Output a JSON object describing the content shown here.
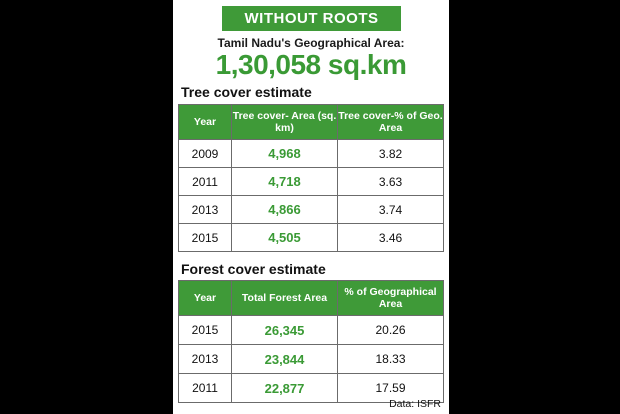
{
  "banner": "WITHOUT ROOTS",
  "geo_label": "Tamil Nadu's Geographical Area:",
  "geo_value": "1,30,058 sq.km",
  "tree": {
    "title": "Tree cover estimate",
    "headers": [
      "Year",
      "Tree cover- Area (sq. km)",
      "Tree cover-% of Geo. Area"
    ],
    "rows": [
      [
        "2009",
        "4,968",
        "3.82"
      ],
      [
        "2011",
        "4,718",
        "3.63"
      ],
      [
        "2013",
        "4,866",
        "3.74"
      ],
      [
        "2015",
        "4,505",
        "3.46"
      ]
    ]
  },
  "forest": {
    "title": "Forest cover estimate",
    "headers": [
      "Year",
      "Total Forest Area",
      "% of Geographical Area"
    ],
    "rows": [
      [
        "2015",
        "26,345",
        "20.26"
      ],
      [
        "2013",
        "23,844",
        "18.33"
      ],
      [
        "2011",
        "22,877",
        "17.59"
      ]
    ]
  },
  "source": "Data: ISFR",
  "chart_data": [
    {
      "type": "table",
      "title": "Tree cover estimate",
      "columns": [
        "Year",
        "Tree cover- Area (sq. km)",
        "Tree cover-% of Geo. Area"
      ],
      "x": [
        2009,
        2011,
        2013,
        2015
      ],
      "series": [
        {
          "name": "Tree cover- Area (sq. km)",
          "values": [
            4968,
            4718,
            4866,
            4505
          ]
        },
        {
          "name": "Tree cover-% of Geo. Area",
          "values": [
            3.82,
            3.63,
            3.74,
            3.46
          ]
        }
      ]
    },
    {
      "type": "table",
      "title": "Forest cover estimate",
      "columns": [
        "Year",
        "Total Forest Area",
        "% of Geographical Area"
      ],
      "x": [
        2015,
        2013,
        2011
      ],
      "series": [
        {
          "name": "Total Forest Area",
          "values": [
            26345,
            23844,
            22877
          ]
        },
        {
          "name": "% of Geographical Area",
          "values": [
            20.26,
            18.33,
            17.59
          ]
        }
      ]
    }
  ],
  "colors": {
    "accent_green": "#3f9a38",
    "value_green": "#3a9a35",
    "frame": "#000000"
  }
}
